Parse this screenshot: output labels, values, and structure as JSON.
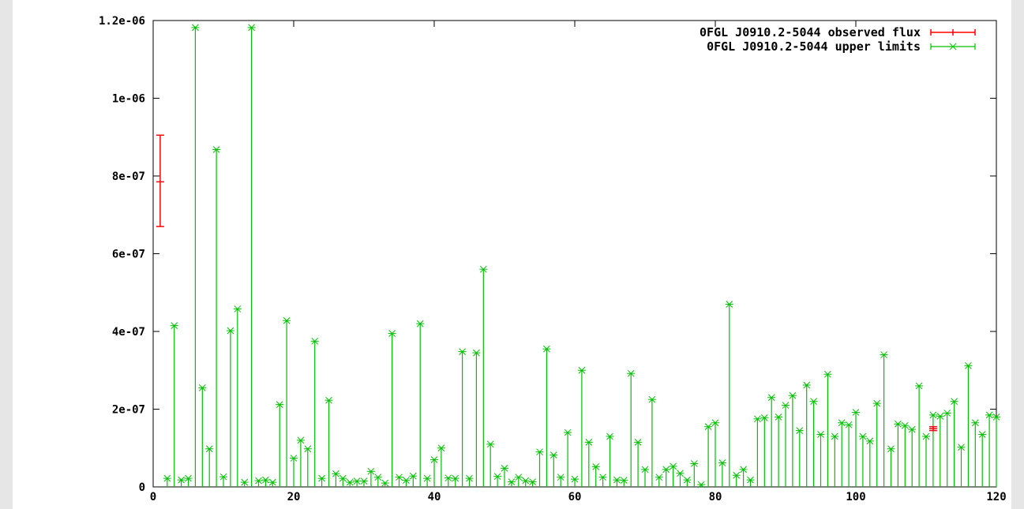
{
  "chart_data": {
    "type": "scatter",
    "title": "",
    "xlabel": "",
    "ylabel": "",
    "xlim": [
      0,
      120
    ],
    "ylim": [
      0,
      1.2e-06
    ],
    "x_ticks": [
      0,
      20,
      40,
      60,
      80,
      100,
      120
    ],
    "x_tick_labels": [
      "0",
      "20",
      "40",
      "60",
      "80",
      "100",
      "120"
    ],
    "y_ticks": [
      0,
      2e-07,
      4e-07,
      6e-07,
      8e-07,
      1e-06,
      1.2e-06
    ],
    "y_tick_labels": [
      "0",
      "2e-07",
      "4e-07",
      "6e-07",
      "8e-07",
      "1e-06",
      "1.2e-06"
    ],
    "grid": false,
    "legend_position": "top-right",
    "colors": {
      "observed": "#ff0000",
      "upper": "#00c000"
    },
    "series": [
      {
        "name": "0FGL J0910.2-5044 observed flux",
        "style": "errorbars",
        "points": [
          {
            "x": 1,
            "y": 7.85e-07,
            "ylow": 6.7e-07,
            "yhigh": 9.05e-07
          },
          {
            "x": 111,
            "y": 1.5e-07,
            "ylow": 1.45e-07,
            "yhigh": 1.55e-07
          }
        ]
      },
      {
        "name": "0FGL J0910.2-5044 upper limits",
        "style": "impulses-points",
        "x": [
          2,
          3,
          4,
          5,
          6,
          7,
          8,
          9,
          10,
          11,
          12,
          13,
          14,
          15,
          16,
          17,
          18,
          19,
          20,
          21,
          22,
          23,
          24,
          25,
          26,
          27,
          28,
          29,
          30,
          31,
          32,
          33,
          34,
          35,
          36,
          37,
          38,
          39,
          40,
          41,
          42,
          43,
          44,
          45,
          46,
          47,
          48,
          49,
          50,
          51,
          52,
          53,
          54,
          55,
          56,
          57,
          58,
          59,
          60,
          61,
          62,
          63,
          64,
          65,
          66,
          67,
          68,
          69,
          70,
          71,
          72,
          73,
          74,
          75,
          76,
          77,
          78,
          79,
          80,
          81,
          82,
          83,
          84,
          85,
          86,
          87,
          88,
          89,
          90,
          91,
          92,
          93,
          94,
          95,
          96,
          97,
          98,
          99,
          100,
          101,
          102,
          103,
          104,
          105,
          106,
          107,
          108,
          109,
          110,
          111,
          112,
          113,
          114,
          115,
          116,
          117,
          118,
          119,
          120
        ],
        "y": [
          2.2e-08,
          4.15e-07,
          1.8e-08,
          2.2e-08,
          1.182e-06,
          2.55e-07,
          9.8e-08,
          8.68e-07,
          2.6e-08,
          4.02e-07,
          4.58e-07,
          1.2e-08,
          1.182e-06,
          1.6e-08,
          1.8e-08,
          1.2e-08,
          2.12e-07,
          4.28e-07,
          7.4e-08,
          1.2e-07,
          9.8e-08,
          3.75e-07,
          2.2e-08,
          2.23e-07,
          3.4e-08,
          2.2e-08,
          1.2e-08,
          1.5e-08,
          1.5e-08,
          4e-08,
          2.5e-08,
          1e-08,
          3.95e-07,
          2.5e-08,
          1.7e-08,
          2.8e-08,
          4.2e-07,
          2.2e-08,
          7e-08,
          1e-07,
          2.3e-08,
          2.2e-08,
          3.48e-07,
          2.2e-08,
          3.45e-07,
          5.6e-07,
          1.1e-07,
          2.7e-08,
          4.8e-08,
          1.3e-08,
          2.5e-08,
          1.6e-08,
          1.3e-08,
          9e-08,
          3.55e-07,
          8.2e-08,
          2.5e-08,
          1.4e-07,
          2e-08,
          3e-07,
          1.15e-07,
          5.2e-08,
          2.5e-08,
          1.3e-07,
          1.8e-08,
          1.7e-08,
          2.92e-07,
          1.15e-07,
          4.5e-08,
          2.25e-07,
          2.5e-08,
          4.5e-08,
          5.3e-08,
          3.5e-08,
          1.8e-08,
          6e-08,
          6e-09,
          1.55e-07,
          1.65e-07,
          6.2e-08,
          4.7e-07,
          3e-08,
          4.5e-08,
          1.8e-08,
          1.75e-07,
          1.78e-07,
          2.3e-07,
          1.8e-07,
          2.1e-07,
          2.35e-07,
          1.45e-07,
          2.62e-07,
          2.2e-07,
          1.35e-07,
          2.9e-07,
          1.3e-07,
          1.65e-07,
          1.6e-07,
          1.92e-07,
          1.3e-07,
          1.18e-07,
          2.15e-07,
          3.4e-07,
          9.8e-08,
          1.62e-07,
          1.58e-07,
          1.48e-07,
          2.6e-07,
          1.3e-07,
          1.85e-07,
          1.82e-07,
          1.9e-07,
          2.2e-07,
          1.02e-07,
          3.12e-07,
          1.65e-07,
          1.35e-07,
          1.85e-07,
          1.8e-07
        ]
      }
    ]
  }
}
